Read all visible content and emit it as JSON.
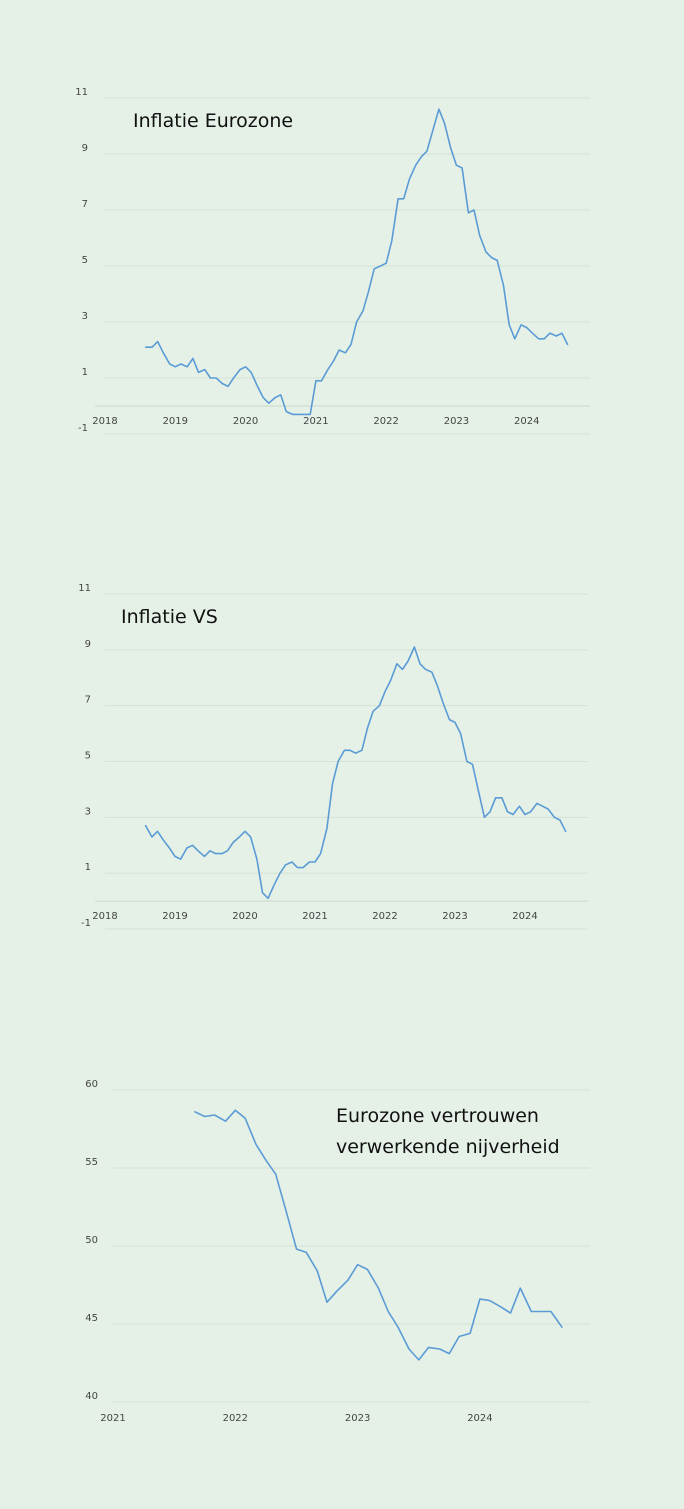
{
  "chart_data": [
    {
      "id": "eurozone-inflation",
      "type": "line",
      "title_lines": [
        "Inflatie Eurozone"
      ],
      "xlabel": "",
      "ylabel": "",
      "x_ticks": [
        "2018",
        "2019",
        "2020",
        "2021",
        "2022",
        "2023",
        "2024"
      ],
      "y_ticks": [
        -1,
        1,
        3,
        5,
        7,
        9,
        11
      ],
      "ylim": [
        -1,
        11
      ],
      "xlim": [
        2018,
        2024.9
      ],
      "grid": true,
      "legend": "none",
      "color": "#5b9bd5",
      "series": [
        {
          "x": [
            2018.58,
            2018.67,
            2018.75,
            2018.83,
            2018.92,
            2019.0,
            2019.08,
            2019.17,
            2019.25,
            2019.33,
            2019.42,
            2019.5,
            2019.58,
            2019.67,
            2019.75,
            2019.83,
            2019.92,
            2020.0,
            2020.08,
            2020.17,
            2020.25,
            2020.33,
            2020.42,
            2020.5,
            2020.58,
            2020.67,
            2020.75,
            2020.83,
            2020.92,
            2021.0,
            2021.08,
            2021.17,
            2021.25,
            2021.33,
            2021.42,
            2021.5,
            2021.58,
            2021.67,
            2021.75,
            2021.83,
            2021.92,
            2022.0,
            2022.08,
            2022.17,
            2022.25,
            2022.33,
            2022.42,
            2022.5,
            2022.58,
            2022.67,
            2022.75,
            2022.83,
            2022.92,
            2023.0,
            2023.08,
            2023.17,
            2023.25,
            2023.33,
            2023.42,
            2023.5,
            2023.58,
            2023.67,
            2023.75,
            2023.83,
            2023.92,
            2024.0,
            2024.08,
            2024.17,
            2024.25,
            2024.33,
            2024.42,
            2024.5,
            2024.58
          ],
          "values": [
            2.1,
            2.1,
            2.3,
            1.9,
            1.5,
            1.4,
            1.5,
            1.4,
            1.7,
            1.2,
            1.3,
            1.0,
            1.0,
            0.8,
            0.7,
            1.0,
            1.3,
            1.4,
            1.2,
            0.7,
            0.3,
            0.1,
            0.3,
            0.4,
            -0.2,
            -0.3,
            -0.3,
            -0.3,
            -0.3,
            0.9,
            0.9,
            1.3,
            1.6,
            2.0,
            1.9,
            2.2,
            3.0,
            3.4,
            4.1,
            4.9,
            5.0,
            5.1,
            5.9,
            7.4,
            7.4,
            8.1,
            8.6,
            8.9,
            9.1,
            9.9,
            10.6,
            10.1,
            9.2,
            8.6,
            8.5,
            6.9,
            7.0,
            6.1,
            5.5,
            5.3,
            5.2,
            4.3,
            2.9,
            2.4,
            2.9,
            2.8,
            2.6,
            2.4,
            2.4,
            2.6,
            2.5,
            2.6,
            2.2
          ]
        }
      ]
    },
    {
      "id": "us-inflation",
      "type": "line",
      "title_lines": [
        "Inflatie VS"
      ],
      "xlabel": "",
      "ylabel": "",
      "x_ticks": [
        "2018",
        "2019",
        "2020",
        "2021",
        "2022",
        "2023",
        "2024"
      ],
      "y_ticks": [
        -1,
        1,
        3,
        5,
        7,
        9,
        11
      ],
      "ylim": [
        -1,
        11
      ],
      "xlim": [
        2018,
        2024.9
      ],
      "grid": true,
      "legend": "none",
      "color": "#5b9bd5",
      "series": [
        {
          "x": [
            2018.58,
            2018.67,
            2018.75,
            2018.83,
            2018.92,
            2019.0,
            2019.08,
            2019.17,
            2019.25,
            2019.33,
            2019.42,
            2019.5,
            2019.58,
            2019.67,
            2019.75,
            2019.83,
            2019.92,
            2020.0,
            2020.08,
            2020.17,
            2020.25,
            2020.33,
            2020.42,
            2020.5,
            2020.58,
            2020.67,
            2020.75,
            2020.83,
            2020.92,
            2021.0,
            2021.08,
            2021.17,
            2021.25,
            2021.33,
            2021.42,
            2021.5,
            2021.58,
            2021.67,
            2021.75,
            2021.83,
            2021.92,
            2022.0,
            2022.08,
            2022.17,
            2022.25,
            2022.33,
            2022.42,
            2022.5,
            2022.58,
            2022.67,
            2022.75,
            2022.83,
            2022.92,
            2023.0,
            2023.08,
            2023.17,
            2023.25,
            2023.33,
            2023.42,
            2023.5,
            2023.58,
            2023.67,
            2023.75,
            2023.83,
            2023.92,
            2024.0,
            2024.08,
            2024.17,
            2024.25,
            2024.33,
            2024.42,
            2024.5,
            2024.58
          ],
          "values": [
            2.7,
            2.3,
            2.5,
            2.2,
            1.9,
            1.6,
            1.5,
            1.9,
            2.0,
            1.8,
            1.6,
            1.8,
            1.7,
            1.7,
            1.8,
            2.1,
            2.3,
            2.5,
            2.3,
            1.5,
            0.3,
            0.1,
            0.6,
            1.0,
            1.3,
            1.4,
            1.2,
            1.2,
            1.4,
            1.4,
            1.7,
            2.6,
            4.2,
            5.0,
            5.4,
            5.4,
            5.3,
            5.4,
            6.2,
            6.8,
            7.0,
            7.5,
            7.9,
            8.5,
            8.3,
            8.6,
            9.1,
            8.5,
            8.3,
            8.2,
            7.7,
            7.1,
            6.5,
            6.4,
            6.0,
            5.0,
            4.9,
            4.0,
            3.0,
            3.2,
            3.7,
            3.7,
            3.2,
            3.1,
            3.4,
            3.1,
            3.2,
            3.5,
            3.4,
            3.3,
            3.0,
            2.9,
            2.5
          ]
        }
      ]
    },
    {
      "id": "manufacturing-confidence",
      "type": "line",
      "title_lines": [
        "Eurozone vertrouwen",
        "verwerkende nijverheid"
      ],
      "xlabel": "",
      "ylabel": "",
      "x_ticks": [
        "2021",
        "2022",
        "2023",
        "2024"
      ],
      "y_ticks": [
        40,
        45,
        50,
        55,
        60
      ],
      "ylim": [
        40,
        60
      ],
      "xlim": [
        2021,
        2024.9
      ],
      "grid": true,
      "legend": "none",
      "color": "#5b9bd5",
      "series": [
        {
          "x": [
            2021.67,
            2021.75,
            2021.83,
            2021.92,
            2022.0,
            2022.08,
            2022.17,
            2022.25,
            2022.33,
            2022.42,
            2022.5,
            2022.58,
            2022.67,
            2022.75,
            2022.83,
            2022.92,
            2023.0,
            2023.08,
            2023.17,
            2023.25,
            2023.33,
            2023.42,
            2023.5,
            2023.58,
            2023.67,
            2023.75,
            2023.83,
            2023.92,
            2024.0,
            2024.08,
            2024.17,
            2024.25,
            2024.33,
            2024.42,
            2024.5,
            2024.58,
            2024.67
          ],
          "values": [
            58.6,
            58.3,
            58.4,
            58.0,
            58.7,
            58.2,
            56.5,
            55.5,
            54.6,
            52.1,
            49.8,
            49.6,
            48.4,
            46.4,
            47.1,
            47.8,
            48.8,
            48.5,
            47.3,
            45.8,
            44.8,
            43.4,
            42.7,
            43.5,
            43.4,
            43.1,
            44.2,
            44.4,
            46.6,
            46.5,
            46.1,
            45.7,
            47.3,
            45.8,
            45.8,
            45.8,
            44.8
          ]
        }
      ]
    }
  ]
}
